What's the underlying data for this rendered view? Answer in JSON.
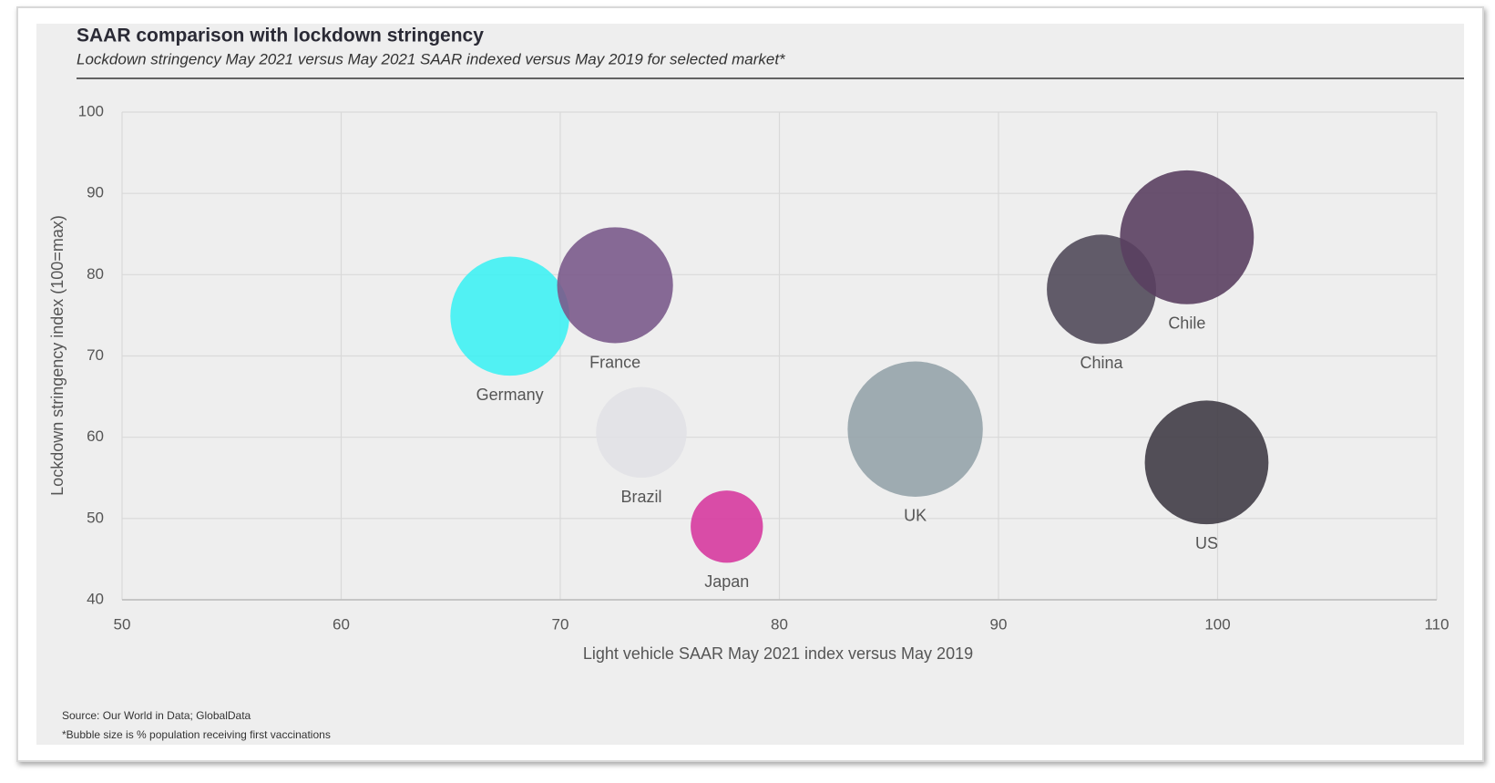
{
  "chart_data": {
    "type": "bubble",
    "title": "SAAR comparison with lockdown stringency",
    "subtitle": "Lockdown stringency May 2021 versus May 2021 SAAR indexed versus May 2019 for selected market*",
    "xlabel": "Light vehicle SAAR May 2021 index versus May 2019",
    "ylabel": "Lockdown stringency index (100=max)",
    "source": "Source: Our World in Data; GlobalData",
    "note": "*Bubble size is % population receiving first vaccinations",
    "labels": [
      "Germany",
      "France",
      "Brazil",
      "Japan",
      "UK",
      "China",
      "Chile",
      "US"
    ],
    "x": [
      67.7,
      72.5,
      73.7,
      77.6,
      86.2,
      94.7,
      98.6,
      99.5
    ],
    "values": [
      74.9,
      78.7,
      60.6,
      49,
      61,
      78.2,
      84.6,
      56.9
    ],
    "sizes": [
      38,
      36,
      22,
      14,
      49,
      32,
      48,
      41
    ],
    "colors": [
      "#3ff1f3",
      "#7a5a8b",
      "#e1e1e5",
      "#d63a9f",
      "#95a3aa",
      "#514a5a",
      "#5a3f61",
      "#403c46"
    ],
    "xlim": [
      50,
      110
    ],
    "xticks": [
      50,
      60,
      70,
      80,
      90,
      100,
      110
    ],
    "ylim": [
      40,
      100
    ],
    "yticks": [
      40,
      50,
      60,
      70,
      80,
      90,
      100
    ],
    "grid": true
  }
}
